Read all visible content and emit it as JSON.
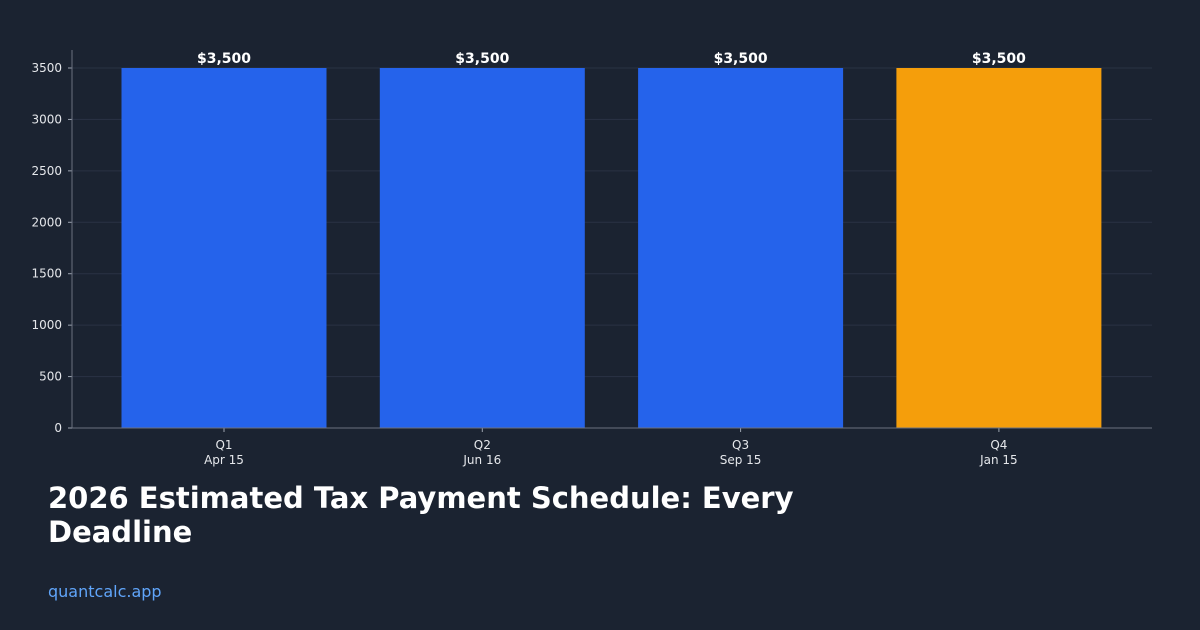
{
  "chart_data": {
    "type": "bar",
    "title": "2026 Estimated Tax Payment Schedule: Every Deadline",
    "source": "quantcalc.app",
    "categories": [
      "Q1\nApr 15",
      "Q2\nJun 16",
      "Q3\nSep 15",
      "Q4\nJan 15"
    ],
    "values": [
      3500,
      3500,
      3500,
      3500
    ],
    "value_labels": [
      "$3,500",
      "$3,500",
      "$3,500",
      "$3,500"
    ],
    "colors": [
      "#2563eb",
      "#2563eb",
      "#2563eb",
      "#f59e0b"
    ],
    "ylim": [
      0,
      3675
    ],
    "yticks": [
      0,
      500,
      1000,
      1500,
      2000,
      2500,
      3000,
      3500
    ],
    "grid": true
  }
}
